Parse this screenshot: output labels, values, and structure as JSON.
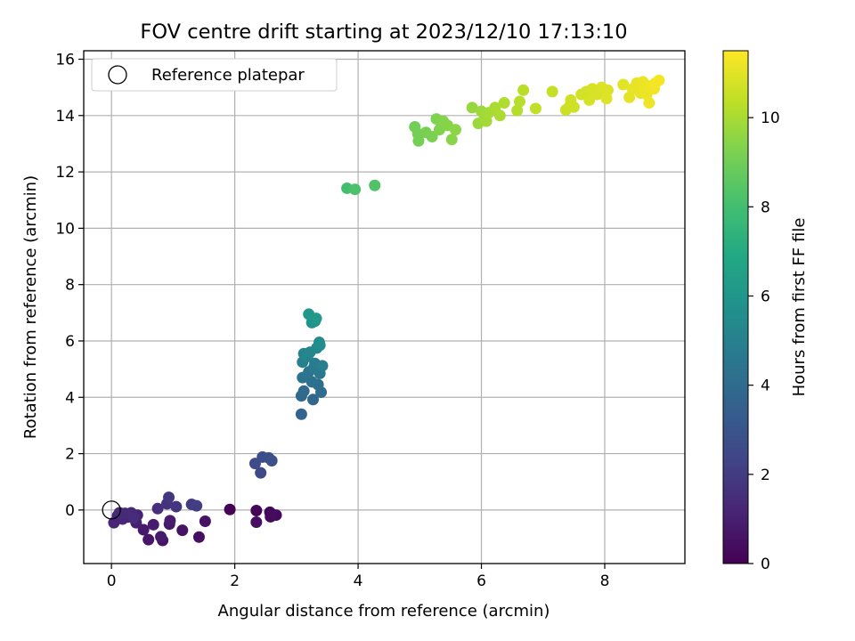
{
  "chart_data": {
    "type": "scatter",
    "title": "FOV centre drift starting at 2023/12/10 17:13:10",
    "xlabel": "Angular distance from reference (arcmin)",
    "ylabel": "Rotation from reference (arcmin)",
    "xlim": [
      -0.45,
      9.3
    ],
    "ylim": [
      -1.9,
      16.3
    ],
    "xticks": [
      0,
      2,
      4,
      6,
      8
    ],
    "yticks": [
      0,
      2,
      4,
      6,
      8,
      10,
      12,
      14,
      16
    ],
    "grid": true,
    "legend": {
      "position": "top-left",
      "entries": [
        "Reference platepar"
      ]
    },
    "reference_point": {
      "x": 0,
      "y": 0
    },
    "colorbar": {
      "label": "Hours from first FF file",
      "colormap": "viridis",
      "range": [
        0,
        11.5
      ],
      "ticks": [
        0,
        2,
        4,
        6,
        8,
        10
      ]
    },
    "points": [
      [
        1.92,
        0.02,
        0.05
      ],
      [
        2.35,
        -0.02,
        0.15
      ],
      [
        2.57,
        -0.08,
        0.25
      ],
      [
        2.67,
        -0.18,
        0.3
      ],
      [
        2.58,
        -0.24,
        0.35
      ],
      [
        2.35,
        -0.43,
        0.45
      ],
      [
        1.42,
        -0.96,
        0.5
      ],
      [
        1.15,
        -0.72,
        0.55
      ],
      [
        1.52,
        -0.4,
        0.6
      ],
      [
        0.83,
        -1.08,
        0.65
      ],
      [
        0.6,
        -1.05,
        0.7
      ],
      [
        0.94,
        -0.5,
        0.75
      ],
      [
        0.52,
        -0.7,
        0.8
      ],
      [
        0.8,
        -0.95,
        0.85
      ],
      [
        0.68,
        -0.52,
        0.9
      ],
      [
        0.95,
        -0.38,
        0.95
      ],
      [
        0.4,
        -0.45,
        1.0
      ],
      [
        0.27,
        -0.25,
        1.05
      ],
      [
        0.42,
        -0.18,
        1.1
      ],
      [
        0.1,
        -0.2,
        1.15
      ],
      [
        0.04,
        -0.45,
        1.2
      ],
      [
        0.18,
        -0.32,
        1.25
      ],
      [
        0.32,
        -0.1,
        1.3
      ],
      [
        0.13,
        -0.1,
        1.35
      ],
      [
        0.22,
        -0.12,
        1.4
      ],
      [
        0.36,
        -0.28,
        1.45
      ],
      [
        0.75,
        0.05,
        1.55
      ],
      [
        0.9,
        0.22,
        1.65
      ],
      [
        1.05,
        0.12,
        1.75
      ],
      [
        0.93,
        0.45,
        1.85
      ],
      [
        1.3,
        0.2,
        1.95
      ],
      [
        1.38,
        0.15,
        2.05
      ],
      [
        2.42,
        1.32,
        2.5
      ],
      [
        2.33,
        1.65,
        2.6
      ],
      [
        2.45,
        1.88,
        2.7
      ],
      [
        2.55,
        1.85,
        2.75
      ],
      [
        2.6,
        1.75,
        2.8
      ],
      [
        3.08,
        3.4,
        3.7
      ],
      [
        3.27,
        3.92,
        3.8
      ],
      [
        3.08,
        4.05,
        3.9
      ],
      [
        3.12,
        4.22,
        4.0
      ],
      [
        3.4,
        4.18,
        4.1
      ],
      [
        3.35,
        4.45,
        4.2
      ],
      [
        3.25,
        4.55,
        4.3
      ],
      [
        3.1,
        4.7,
        4.4
      ],
      [
        3.2,
        4.9,
        4.5
      ],
      [
        3.38,
        4.85,
        4.6
      ],
      [
        3.28,
        5.05,
        4.7
      ],
      [
        3.3,
        5.2,
        4.8
      ],
      [
        3.42,
        5.12,
        4.9
      ],
      [
        3.1,
        5.25,
        5.0
      ],
      [
        3.18,
        5.45,
        5.1
      ],
      [
        3.12,
        5.55,
        5.2
      ],
      [
        3.22,
        5.6,
        5.3
      ],
      [
        3.33,
        5.75,
        5.4
      ],
      [
        3.38,
        5.85,
        5.5
      ],
      [
        3.37,
        5.95,
        5.6
      ],
      [
        3.25,
        6.65,
        5.8
      ],
      [
        3.3,
        6.7,
        5.9
      ],
      [
        3.2,
        6.95,
        6.0
      ],
      [
        3.32,
        6.8,
        6.1
      ],
      [
        3.82,
        11.42,
        8.0
      ],
      [
        3.95,
        11.38,
        8.2
      ],
      [
        4.27,
        11.52,
        8.3
      ],
      [
        4.92,
        13.6,
        9.0
      ],
      [
        4.98,
        13.1,
        9.05
      ],
      [
        4.97,
        13.35,
        9.1
      ],
      [
        5.1,
        13.4,
        9.15
      ],
      [
        5.2,
        13.25,
        9.2
      ],
      [
        5.27,
        13.88,
        9.25
      ],
      [
        5.32,
        13.5,
        9.3
      ],
      [
        5.38,
        13.8,
        9.35
      ],
      [
        5.45,
        13.65,
        9.4
      ],
      [
        5.52,
        13.15,
        9.45
      ],
      [
        5.58,
        13.5,
        9.5
      ],
      [
        5.85,
        14.28,
        9.7
      ],
      [
        5.95,
        13.72,
        9.75
      ],
      [
        6.0,
        14.15,
        9.8
      ],
      [
        6.05,
        14.0,
        9.85
      ],
      [
        6.08,
        13.8,
        9.9
      ],
      [
        6.12,
        14.1,
        9.95
      ],
      [
        6.22,
        14.28,
        10.0
      ],
      [
        6.3,
        14.0,
        10.05
      ],
      [
        6.37,
        14.45,
        10.1
      ],
      [
        6.58,
        14.18,
        10.2
      ],
      [
        6.62,
        14.5,
        10.25
      ],
      [
        6.68,
        14.9,
        10.3
      ],
      [
        6.88,
        14.25,
        10.4
      ],
      [
        7.15,
        14.85,
        10.5
      ],
      [
        7.37,
        14.2,
        10.6
      ],
      [
        7.42,
        14.3,
        10.62
      ],
      [
        7.45,
        14.55,
        10.65
      ],
      [
        7.5,
        14.3,
        10.68
      ],
      [
        7.62,
        14.75,
        10.72
      ],
      [
        7.7,
        14.85,
        10.75
      ],
      [
        7.75,
        14.55,
        10.78
      ],
      [
        7.8,
        14.95,
        10.82
      ],
      [
        7.88,
        14.75,
        10.85
      ],
      [
        7.95,
        15.0,
        10.88
      ],
      [
        8.05,
        14.9,
        10.9
      ],
      [
        8.03,
        14.6,
        10.92
      ],
      [
        8.3,
        15.1,
        11.0
      ],
      [
        8.4,
        14.65,
        11.05
      ],
      [
        8.45,
        14.95,
        11.08
      ],
      [
        8.52,
        15.15,
        11.1
      ],
      [
        8.58,
        14.8,
        11.12
      ],
      [
        8.62,
        15.2,
        11.15
      ],
      [
        8.65,
        15.0,
        11.18
      ],
      [
        8.68,
        14.75,
        11.2
      ],
      [
        8.72,
        14.45,
        11.22
      ],
      [
        8.75,
        15.05,
        11.25
      ],
      [
        8.8,
        14.95,
        11.28
      ],
      [
        8.82,
        15.15,
        11.3
      ],
      [
        8.88,
        15.25,
        11.35
      ]
    ]
  }
}
